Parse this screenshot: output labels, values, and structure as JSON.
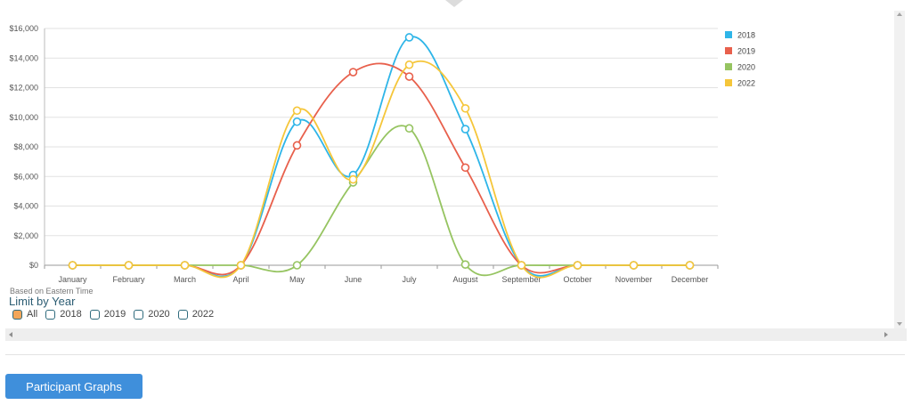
{
  "chart_data": {
    "type": "line",
    "categories": [
      "January",
      "February",
      "March",
      "April",
      "May",
      "June",
      "July",
      "August",
      "September",
      "October",
      "November",
      "December"
    ],
    "yticks": [
      "$0",
      "$2,000",
      "$4,000",
      "$6,000",
      "$8,000",
      "$10,000",
      "$12,000",
      "$14,000",
      "$16,000"
    ],
    "ylim": [
      0,
      16000
    ],
    "grid": true,
    "legend_position": "top-right",
    "series": [
      {
        "name": "2018",
        "color": "#2eb5e8",
        "values": [
          0,
          0,
          0,
          0,
          9700,
          6100,
          15400,
          9200,
          0,
          0,
          0,
          0
        ]
      },
      {
        "name": "2019",
        "color": "#e8604c",
        "values": [
          0,
          0,
          0,
          0,
          8100,
          13050,
          12750,
          6600,
          0,
          0,
          0,
          0
        ]
      },
      {
        "name": "2020",
        "color": "#96c461",
        "values": [
          0,
          0,
          0,
          0,
          0,
          5600,
          9250,
          50,
          0,
          0,
          0,
          0
        ]
      },
      {
        "name": "2022",
        "color": "#f5c63a",
        "values": [
          0,
          0,
          0,
          0,
          10450,
          5800,
          13550,
          10600,
          0,
          0,
          0,
          0
        ]
      }
    ]
  },
  "note": "Based on Eastern Time",
  "limit": {
    "title": "Limit by Year",
    "options": [
      {
        "label": "All",
        "checked": true
      },
      {
        "label": "2018",
        "checked": false
      },
      {
        "label": "2019",
        "checked": false
      },
      {
        "label": "2020",
        "checked": false
      },
      {
        "label": "2022",
        "checked": false
      }
    ]
  },
  "button_label": "Participant Graphs"
}
